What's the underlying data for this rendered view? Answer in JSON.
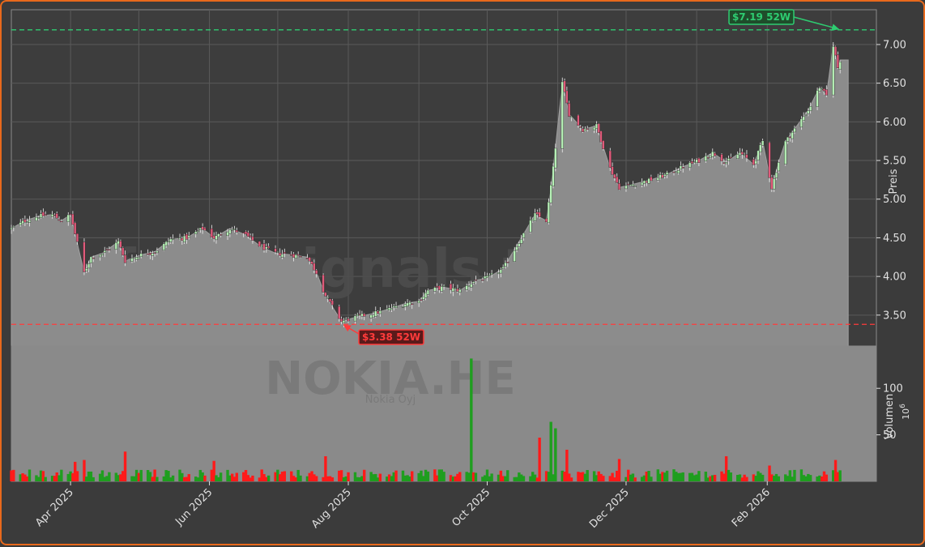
{
  "chart_data": [
    {
      "type": "candlestick",
      "ylabel": "Preis",
      "ylim": [
        3.1,
        7.45
      ],
      "yticks": [
        "3.50",
        "4.00",
        "4.50",
        "5.00",
        "5.50",
        "6.00",
        "6.50",
        "7.00"
      ],
      "x_start": "2025-03-06",
      "x_end": "2026-03-06",
      "xticks": [
        "Apr 2025",
        "Jun 2025",
        "Aug 2025",
        "Oct 2025",
        "Dec 2025",
        "Feb 2026"
      ],
      "grid": true,
      "watermark": "forexsignals.trade",
      "high_52w": {
        "value": 7.19,
        "label": "$7.19 52W",
        "date": "2026-03-05"
      },
      "low_52w": {
        "value": 3.38,
        "label": "$3.38 52W",
        "date": "2025-07-29"
      },
      "close_series": [
        [
          "2025-03-06",
          4.62
        ],
        [
          "2025-03-12",
          4.72
        ],
        [
          "2025-03-18",
          4.78
        ],
        [
          "2025-03-24",
          4.8
        ],
        [
          "2025-03-28",
          4.72
        ],
        [
          "2025-04-01",
          4.8
        ],
        [
          "2025-04-03",
          4.55
        ],
        [
          "2025-04-07",
          4.05
        ],
        [
          "2025-04-10",
          4.25
        ],
        [
          "2025-04-15",
          4.3
        ],
        [
          "2025-04-22",
          4.45
        ],
        [
          "2025-04-25",
          4.2
        ],
        [
          "2025-05-02",
          4.28
        ],
        [
          "2025-05-08",
          4.32
        ],
        [
          "2025-05-15",
          4.48
        ],
        [
          "2025-05-22",
          4.5
        ],
        [
          "2025-05-29",
          4.62
        ],
        [
          "2025-06-03",
          4.5
        ],
        [
          "2025-06-10",
          4.62
        ],
        [
          "2025-06-16",
          4.55
        ],
        [
          "2025-06-24",
          4.38
        ],
        [
          "2025-06-30",
          4.3
        ],
        [
          "2025-07-07",
          4.28
        ],
        [
          "2025-07-14",
          4.25
        ],
        [
          "2025-07-18",
          4.05
        ],
        [
          "2025-07-22",
          3.75
        ],
        [
          "2025-07-29",
          3.42
        ],
        [
          "2025-08-05",
          3.48
        ],
        [
          "2025-08-12",
          3.52
        ],
        [
          "2025-08-19",
          3.58
        ],
        [
          "2025-08-26",
          3.65
        ],
        [
          "2025-09-01",
          3.68
        ],
        [
          "2025-09-05",
          3.82
        ],
        [
          "2025-09-12",
          3.86
        ],
        [
          "2025-09-19",
          3.82
        ],
        [
          "2025-09-26",
          3.95
        ],
        [
          "2025-10-01",
          3.98
        ],
        [
          "2025-10-08",
          4.1
        ],
        [
          "2025-10-15",
          4.45
        ],
        [
          "2025-10-22",
          4.8
        ],
        [
          "2025-10-27",
          4.72
        ],
        [
          "2025-10-30",
          5.4
        ],
        [
          "2025-11-03",
          6.5
        ],
        [
          "2025-11-06",
          6.1
        ],
        [
          "2025-11-12",
          5.9
        ],
        [
          "2025-11-18",
          5.95
        ],
        [
          "2025-11-24",
          5.4
        ],
        [
          "2025-11-28",
          5.15
        ],
        [
          "2025-12-05",
          5.2
        ],
        [
          "2025-12-12",
          5.25
        ],
        [
          "2025-12-19",
          5.32
        ],
        [
          "2025-12-26",
          5.42
        ],
        [
          "2026-01-02",
          5.5
        ],
        [
          "2026-01-08",
          5.6
        ],
        [
          "2026-01-14",
          5.48
        ],
        [
          "2026-01-20",
          5.6
        ],
        [
          "2026-01-26",
          5.45
        ],
        [
          "2026-01-30",
          5.75
        ],
        [
          "2026-02-03",
          5.15
        ],
        [
          "2026-02-08",
          5.7
        ],
        [
          "2026-02-14",
          5.95
        ],
        [
          "2026-02-19",
          6.15
        ],
        [
          "2026-02-24",
          6.45
        ],
        [
          "2026-02-28",
          6.3
        ],
        [
          "2026-03-02",
          7.0
        ],
        [
          "2026-03-04",
          6.7
        ],
        [
          "2026-03-05",
          6.8
        ]
      ],
      "last_close": 6.8
    },
    {
      "type": "bar",
      "title": "NOKIA.HE",
      "subtitle": "Nokia Oyj",
      "ylabel": "Volumen",
      "yunit": "10^6",
      "ylim": [
        0,
        135
      ],
      "yticks": [
        "50",
        "100"
      ],
      "spikes": [
        [
          "2025-04-03",
          21
        ],
        [
          "2025-04-07",
          23
        ],
        [
          "2025-04-25",
          32
        ],
        [
          "2025-06-03",
          22
        ],
        [
          "2025-07-22",
          27
        ],
        [
          "2025-08-03",
          18
        ],
        [
          "2025-09-24",
          132
        ],
        [
          "2025-10-24",
          47
        ],
        [
          "2025-10-29",
          64
        ],
        [
          "2025-10-31",
          57
        ],
        [
          "2025-11-05",
          34
        ],
        [
          "2025-11-28",
          24
        ],
        [
          "2026-01-14",
          27
        ],
        [
          "2026-02-02",
          17
        ],
        [
          "2026-03-01",
          27
        ],
        [
          "2026-03-03",
          23
        ]
      ]
    }
  ],
  "colors": {
    "up": "#2ca02c",
    "down": "#ff1a1a",
    "area": "#8c8c8c",
    "high_line": "#2ecc71",
    "low_line": "#ff3b3b",
    "frame": "#e8691c"
  }
}
